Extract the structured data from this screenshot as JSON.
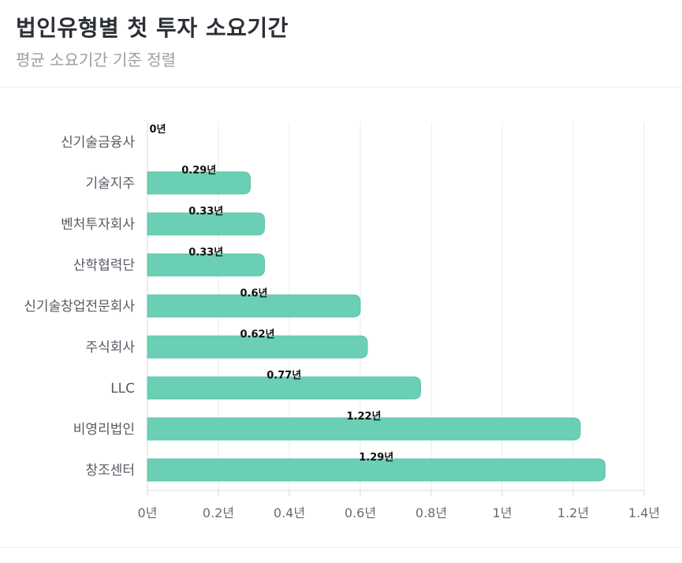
{
  "header": {
    "title": "법인유형별 첫 투자 소요기간",
    "subtitle": "평균 소요기간 기준 정렬"
  },
  "colors": {
    "bar": "#6acfb4",
    "bar_border": "#5cc4a8",
    "grid": "#e9ebef",
    "axis": "#d5d8de"
  },
  "chart_data": {
    "type": "bar",
    "orientation": "horizontal",
    "title": "법인유형별 첫 투자 소요기간",
    "subtitle": "평균 소요기간 기준 정렬",
    "unit": "년",
    "categories": [
      "신기술금융사",
      "기술지주",
      "벤처투자회사",
      "산학협력단",
      "신기술창업전문회사",
      "주식회사",
      "LLC",
      "비영리법인",
      "창조센터"
    ],
    "values": [
      0,
      0.29,
      0.33,
      0.33,
      0.6,
      0.62,
      0.77,
      1.22,
      1.29
    ],
    "value_labels": [
      "0년",
      "0.29년",
      "0.33년",
      "0.33년",
      "0.6년",
      "0.62년",
      "0.77년",
      "1.22년",
      "1.29년"
    ],
    "x_ticks": [
      0,
      0.2,
      0.4,
      0.6,
      0.8,
      1,
      1.2,
      1.4
    ],
    "x_tick_labels": [
      "0년",
      "0.2년",
      "0.4년",
      "0.6년",
      "0.8년",
      "1년",
      "1.2년",
      "1.4년"
    ],
    "xlim": [
      0,
      1.4
    ],
    "grid": true,
    "legend": "none"
  }
}
